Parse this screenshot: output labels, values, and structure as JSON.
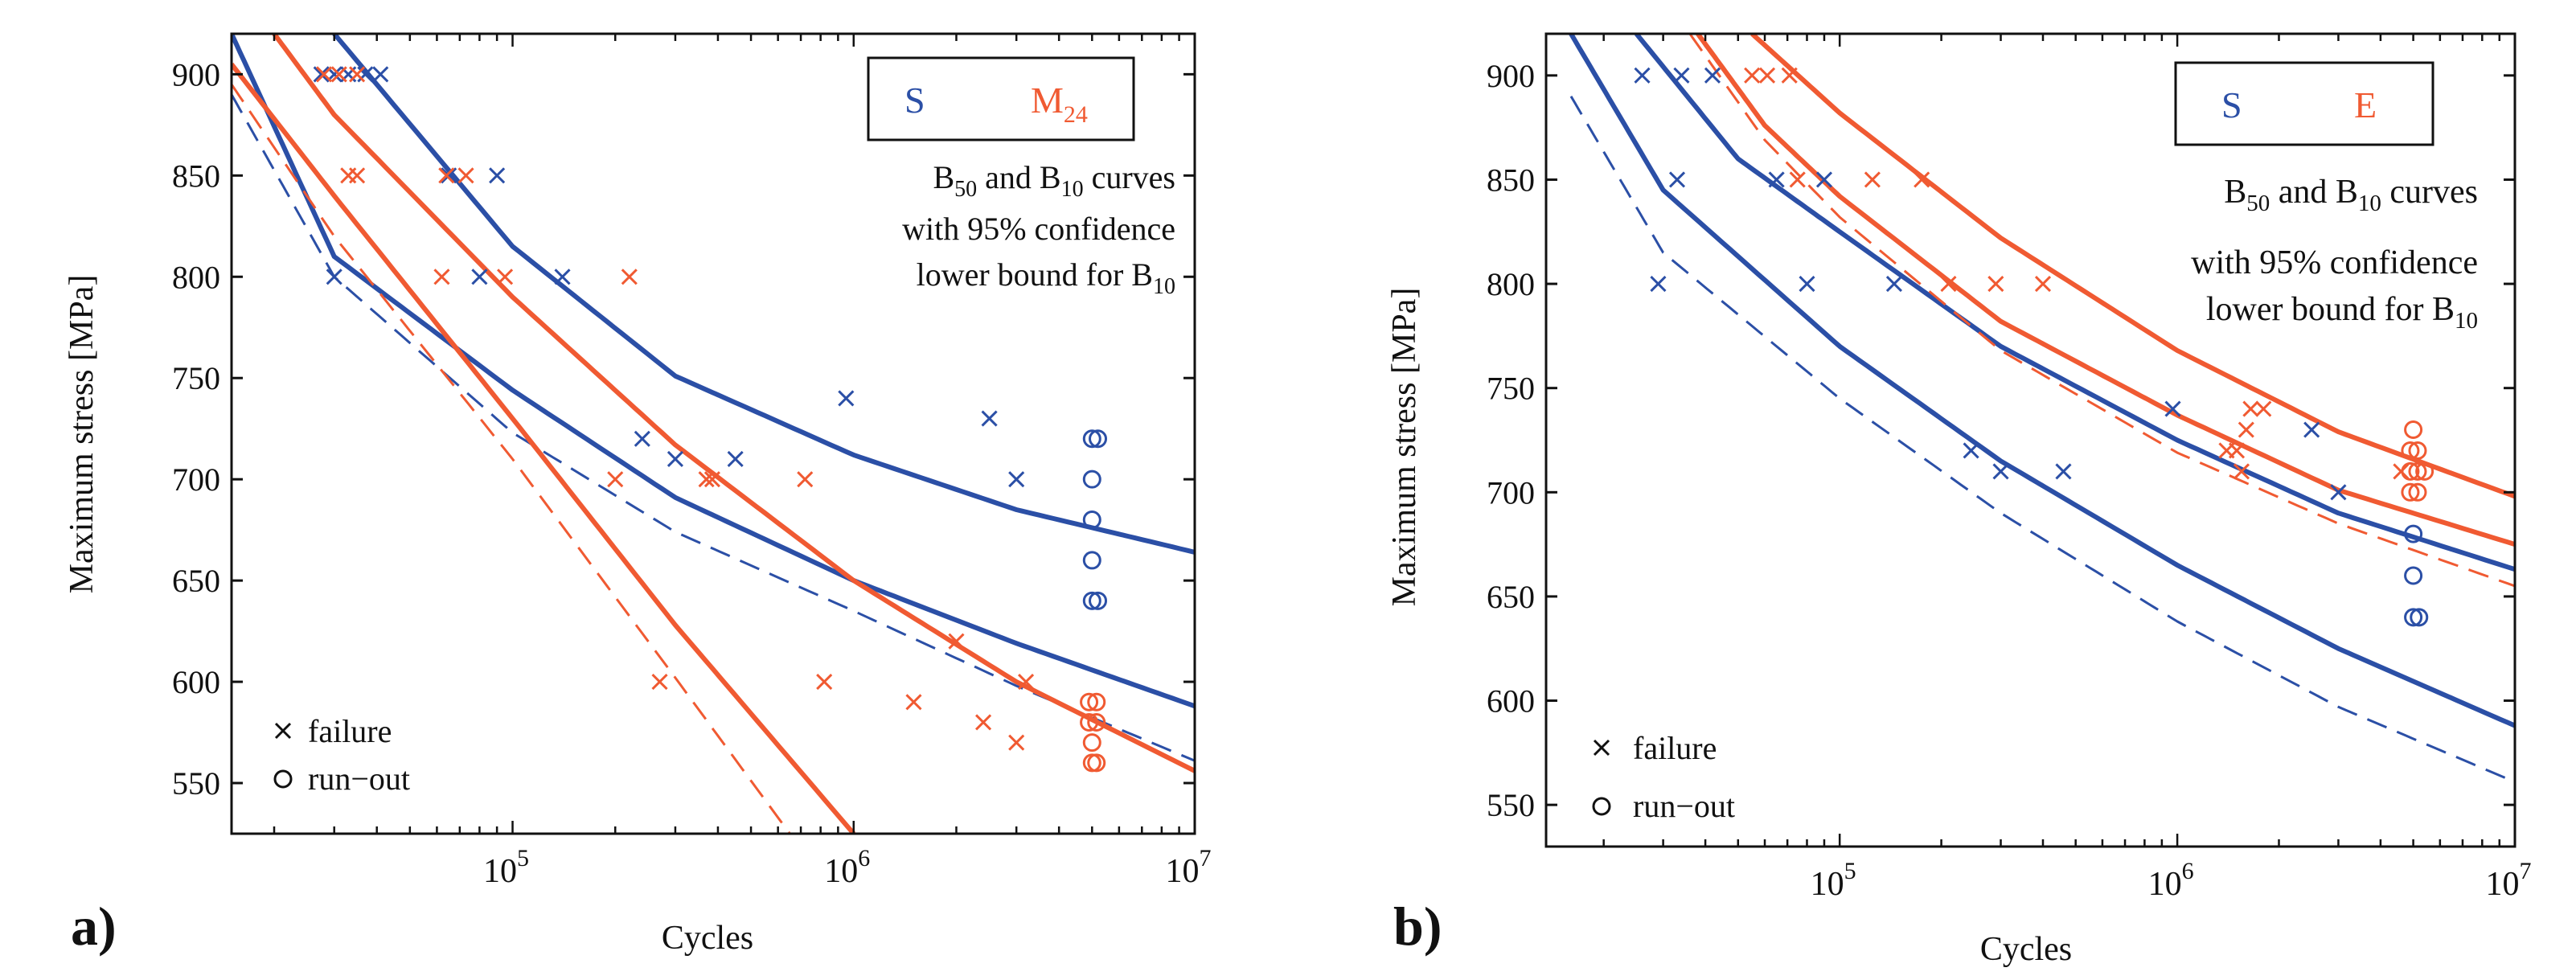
{
  "figure": {
    "colors": {
      "s": "#2b4fa6",
      "other": "#f05a32",
      "axis": "#111111"
    },
    "font_note": "serif"
  },
  "chart_data": [
    {
      "type": "scatter",
      "panel_label": "a)",
      "xlabel": "Cycles",
      "ylabel": "Maximum stress [MPa]",
      "xscale": "log",
      "xlim": [
        15000,
        10000000
      ],
      "ylim": [
        525,
        920
      ],
      "x_ticks": [
        {
          "value": 100000,
          "base": "10",
          "exp": "5"
        },
        {
          "value": 1000000,
          "base": "10",
          "exp": "6"
        },
        {
          "value": 10000000,
          "base": "10",
          "exp": "7"
        }
      ],
      "y_ticks": [
        550,
        600,
        650,
        700,
        750,
        800,
        850,
        900
      ],
      "legend_box": {
        "s_label": "S",
        "other_label_main": "M",
        "other_label_sub": "24"
      },
      "legend_markers": {
        "failure": "failure",
        "runout": "run−out"
      },
      "note": {
        "line1_pre": "B",
        "line1_sub1": "50",
        "line1_mid": " and B",
        "line1_sub2": "10",
        "line1_post": " curves",
        "line2": "with 95% confidence",
        "line3_pre": "lower bound for B",
        "line3_sub": "10"
      },
      "series": [
        {
          "name": "S failure",
          "group": "s",
          "marker": "x",
          "points": [
            [
              27500,
              900
            ],
            [
              30000,
              900
            ],
            [
              33000,
              900
            ],
            [
              37000,
              900
            ],
            [
              41000,
              900
            ],
            [
              30000,
              800
            ],
            [
              65000,
              850
            ],
            [
              90000,
              850
            ],
            [
              80000,
              800
            ],
            [
              140000,
              800
            ],
            [
              240000,
              720
            ],
            [
              300000,
              710
            ],
            [
              450000,
              710
            ],
            [
              950000,
              740
            ],
            [
              2500000,
              730
            ],
            [
              3000000,
              700
            ]
          ]
        },
        {
          "name": "S run-out",
          "group": "s",
          "marker": "o",
          "points": [
            [
              5000000,
              720
            ],
            [
              5200000,
              720
            ],
            [
              5000000,
              700
            ],
            [
              5000000,
              680
            ],
            [
              5000000,
              660
            ],
            [
              5000000,
              640
            ],
            [
              5200000,
              640
            ]
          ]
        },
        {
          "name": "M24 failure",
          "group": "other",
          "marker": "x",
          "points": [
            [
              28000,
              900
            ],
            [
              31000,
              900
            ],
            [
              35000,
              900
            ],
            [
              33000,
              850
            ],
            [
              35000,
              850
            ],
            [
              64000,
              850
            ],
            [
              73000,
              850
            ],
            [
              62000,
              800
            ],
            [
              95000,
              800
            ],
            [
              220000,
              800
            ],
            [
              200000,
              700
            ],
            [
              270000,
              600
            ],
            [
              370000,
              700
            ],
            [
              385000,
              700
            ],
            [
              720000,
              700
            ],
            [
              820000,
              600
            ],
            [
              1500000,
              590
            ],
            [
              2000000,
              620
            ],
            [
              2400000,
              580
            ],
            [
              3000000,
              570
            ],
            [
              3200000,
              600
            ]
          ]
        },
        {
          "name": "M24 run-out",
          "group": "other",
          "marker": "o",
          "points": [
            [
              4900000,
              590
            ],
            [
              5150000,
              590
            ],
            [
              4900000,
              580
            ],
            [
              5150000,
              580
            ],
            [
              5000000,
              570
            ],
            [
              5000000,
              560
            ],
            [
              5150000,
              560
            ]
          ]
        }
      ],
      "curves": [
        {
          "name": "S B50",
          "group": "s",
          "style": "solid",
          "x": [
            30000,
            100000,
            300000,
            1000000,
            3000000,
            10000000
          ],
          "y": [
            920,
            815,
            751,
            712,
            685,
            664
          ]
        },
        {
          "name": "S B10",
          "group": "s",
          "style": "solid",
          "x": [
            15000,
            30000,
            100000,
            300000,
            1000000,
            3000000,
            10000000
          ],
          "y": [
            920,
            810,
            744,
            691,
            650,
            619,
            588
          ]
        },
        {
          "name": "S B10 lower bound",
          "group": "s",
          "style": "dashed",
          "x": [
            15000,
            30000,
            100000,
            300000,
            1000000,
            3000000,
            10000000
          ],
          "y": [
            890,
            800,
            723,
            674,
            635,
            598,
            561
          ]
        },
        {
          "name": "M24 B50",
          "group": "other",
          "style": "solid",
          "x": [
            20000,
            30000,
            100000,
            300000,
            1000000,
            3000000,
            10000000
          ],
          "y": [
            920,
            880,
            790,
            717,
            650,
            600,
            556
          ]
        },
        {
          "name": "M24 B10",
          "group": "other",
          "style": "solid",
          "x": [
            15000,
            30000,
            100000,
            300000,
            1000000
          ],
          "y": [
            905,
            840,
            730,
            628,
            525
          ]
        },
        {
          "name": "M24 B10 lower bound",
          "group": "other",
          "style": "dashed",
          "x": [
            15000,
            30000,
            100000,
            300000,
            650000
          ],
          "y": [
            895,
            820,
            710,
            602,
            525
          ]
        }
      ]
    },
    {
      "type": "scatter",
      "panel_label": "b)",
      "xlabel": "Cycles",
      "ylabel": "Maximum stress [MPa]",
      "xscale": "log",
      "xlim": [
        13500,
        10000000
      ],
      "ylim": [
        530,
        920
      ],
      "x_ticks": [
        {
          "value": 100000,
          "base": "10",
          "exp": "5"
        },
        {
          "value": 1000000,
          "base": "10",
          "exp": "6"
        },
        {
          "value": 10000000,
          "base": "10",
          "exp": "7"
        }
      ],
      "y_ticks": [
        550,
        600,
        650,
        700,
        750,
        800,
        850,
        900
      ],
      "legend_box": {
        "s_label": "S",
        "other_label_main": "E",
        "other_label_sub": ""
      },
      "legend_markers": {
        "failure": "failure",
        "runout": "run−out"
      },
      "note": {
        "line1_pre": "B",
        "line1_sub1": "50",
        "line1_mid": " and B",
        "line1_sub2": "10",
        "line1_post": " curves",
        "line2": "with 95% confidence",
        "line3_pre": "lower bound for B",
        "line3_sub": "10"
      },
      "series": [
        {
          "name": "S failure",
          "group": "s",
          "marker": "x",
          "points": [
            [
              26000,
              900
            ],
            [
              34000,
              900
            ],
            [
              42000,
              900
            ],
            [
              33000,
              850
            ],
            [
              65000,
              850
            ],
            [
              90000,
              850
            ],
            [
              29000,
              800
            ],
            [
              80000,
              800
            ],
            [
              145000,
              800
            ],
            [
              245000,
              720
            ],
            [
              300000,
              710
            ],
            [
              460000,
              710
            ],
            [
              970000,
              740
            ],
            [
              2500000,
              730
            ],
            [
              3000000,
              700
            ]
          ]
        },
        {
          "name": "S run-out",
          "group": "s",
          "marker": "o",
          "points": [
            [
              5000000,
              680
            ],
            [
              5000000,
              660
            ],
            [
              5000000,
              640
            ],
            [
              5200000,
              640
            ]
          ]
        },
        {
          "name": "E failure",
          "group": "other",
          "marker": "x",
          "points": [
            [
              55000,
              900
            ],
            [
              61000,
              900
            ],
            [
              71000,
              900
            ],
            [
              75000,
              850
            ],
            [
              125000,
              850
            ],
            [
              175000,
              850
            ],
            [
              210000,
              800
            ],
            [
              290000,
              800
            ],
            [
              400000,
              800
            ],
            [
              1400000,
              720
            ],
            [
              1500000,
              720
            ],
            [
              1550000,
              710
            ],
            [
              1600000,
              730
            ],
            [
              1650000,
              740
            ],
            [
              1800000,
              740
            ],
            [
              4600000,
              710
            ]
          ]
        },
        {
          "name": "E run-out",
          "group": "other",
          "marker": "o",
          "points": [
            [
              5000000,
              730
            ],
            [
              4900000,
              720
            ],
            [
              5150000,
              720
            ],
            [
              4900000,
              710
            ],
            [
              5150000,
              710
            ],
            [
              5400000,
              710
            ],
            [
              4900000,
              700
            ],
            [
              5150000,
              700
            ]
          ]
        }
      ],
      "curves": [
        {
          "name": "S B50",
          "group": "s",
          "style": "solid",
          "x": [
            25000,
            50000,
            100000,
            300000,
            1000000,
            3000000,
            10000000
          ],
          "y": [
            920,
            860,
            825,
            770,
            725,
            690,
            663
          ]
        },
        {
          "name": "S B10",
          "group": "s",
          "style": "solid",
          "x": [
            16000,
            30000,
            100000,
            300000,
            1000000,
            3000000,
            10000000
          ],
          "y": [
            920,
            845,
            770,
            715,
            665,
            625,
            588
          ]
        },
        {
          "name": "S B10 lower bound",
          "group": "s",
          "style": "dashed",
          "x": [
            16000,
            30000,
            100000,
            300000,
            1000000,
            3000000,
            10000000
          ],
          "y": [
            890,
            815,
            745,
            690,
            638,
            597,
            561
          ]
        },
        {
          "name": "E B50",
          "group": "other",
          "style": "solid",
          "x": [
            55000,
            100000,
            300000,
            1000000,
            3000000,
            10000000
          ],
          "y": [
            920,
            882,
            822,
            768,
            729,
            698
          ]
        },
        {
          "name": "E B10",
          "group": "other",
          "style": "solid",
          "x": [
            38000,
            60000,
            100000,
            300000,
            1000000,
            3000000,
            10000000
          ],
          "y": [
            920,
            876,
            842,
            782,
            737,
            701,
            675
          ]
        },
        {
          "name": "E B10 lower bound",
          "group": "other",
          "style": "dashed",
          "x": [
            36000,
            60000,
            100000,
            300000,
            1000000,
            3000000,
            10000000
          ],
          "y": [
            920,
            869,
            832,
            768,
            719,
            685,
            655
          ]
        }
      ]
    }
  ]
}
